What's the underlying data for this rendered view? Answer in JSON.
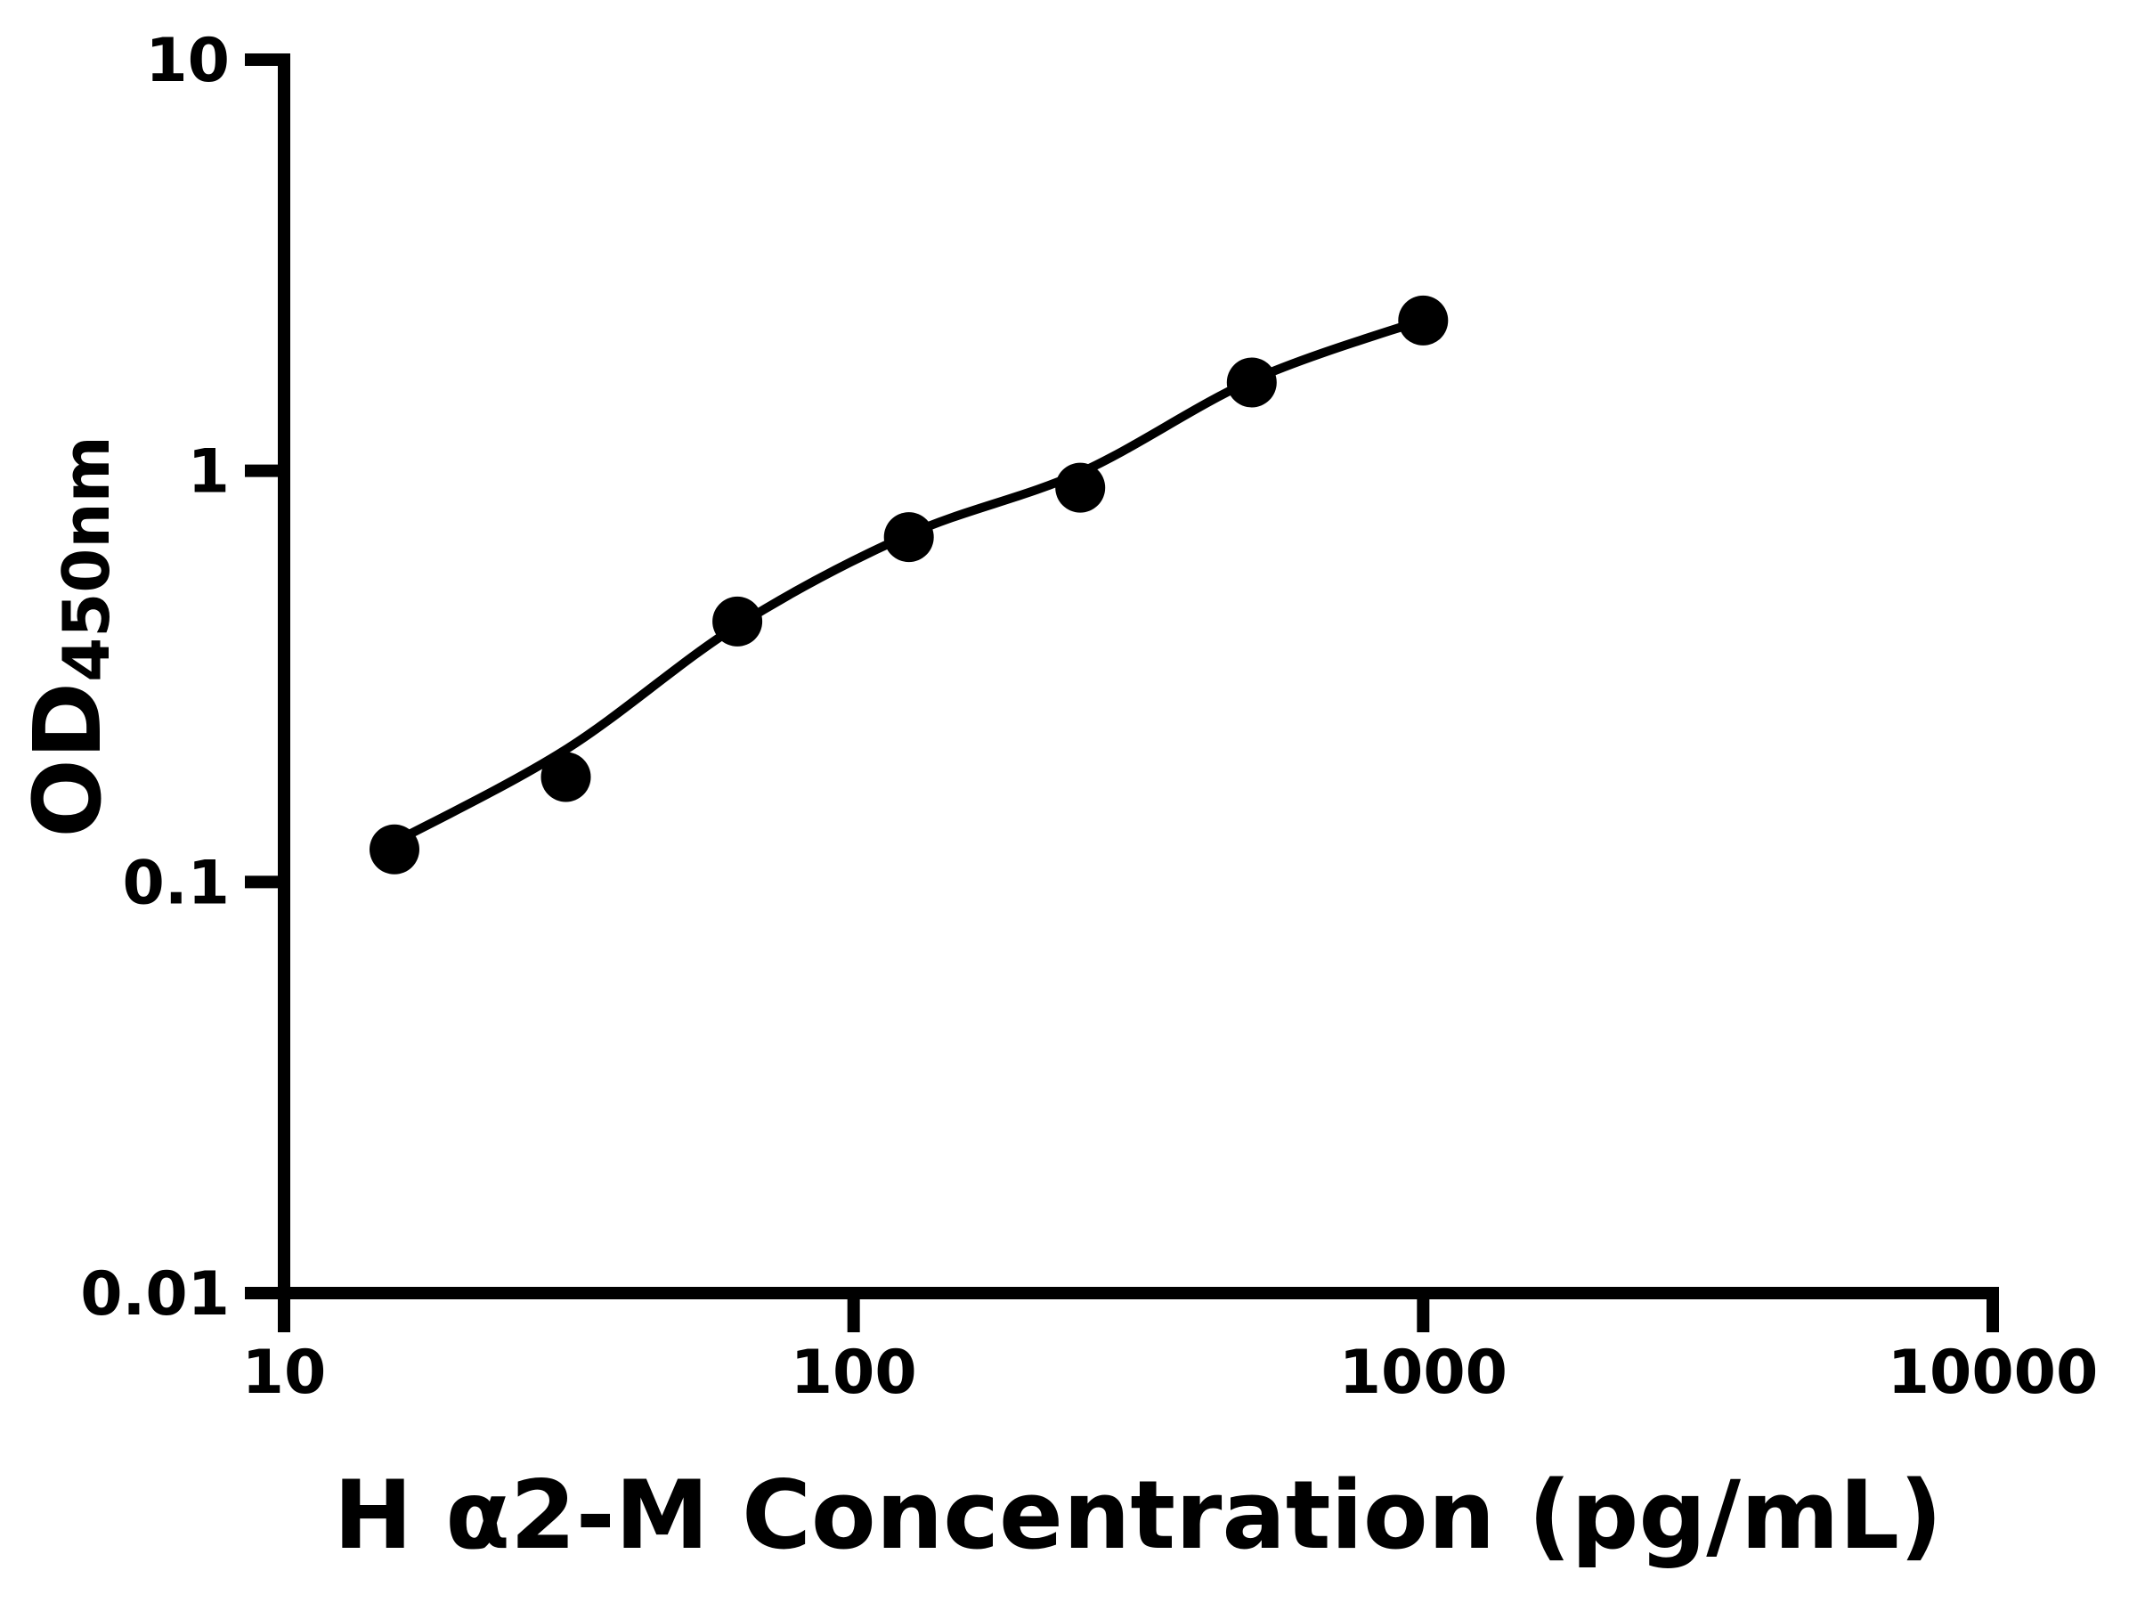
{
  "figure": {
    "background_color": "#ffffff",
    "ink_color": "#000000"
  },
  "chart_data": {
    "type": "scatter",
    "title": "",
    "xlabel": "H α2-M Concentration (pg/mL)",
    "ylabel_main": "OD",
    "ylabel_sub": "450nm",
    "x_scale": "log",
    "y_scale": "log",
    "xlim": [
      10,
      10000
    ],
    "ylim": [
      0.01,
      10
    ],
    "grid": false,
    "legend": null,
    "x_ticks": [
      {
        "value": 10,
        "label": "10"
      },
      {
        "value": 100,
        "label": "100"
      },
      {
        "value": 1000,
        "label": "1000"
      },
      {
        "value": 10000,
        "label": "10000"
      }
    ],
    "y_ticks": [
      {
        "value": 0.01,
        "label": "0.01"
      },
      {
        "value": 0.1,
        "label": "0.1"
      },
      {
        "value": 1,
        "label": "1"
      },
      {
        "value": 10,
        "label": "10"
      }
    ],
    "series": [
      {
        "name": "standard-points",
        "type": "scatter",
        "marker": "filled-circle",
        "color": "#000000",
        "points": [
          {
            "x": 15.625,
            "y": 0.12
          },
          {
            "x": 31.25,
            "y": 0.18
          },
          {
            "x": 62.5,
            "y": 0.43
          },
          {
            "x": 125,
            "y": 0.69
          },
          {
            "x": 250,
            "y": 0.91
          },
          {
            "x": 500,
            "y": 1.64
          },
          {
            "x": 1000,
            "y": 2.32
          }
        ]
      },
      {
        "name": "fit-curve",
        "type": "line",
        "color": "#000000",
        "points": [
          {
            "x": 15.625,
            "y": 0.125
          },
          {
            "x": 31.25,
            "y": 0.21
          },
          {
            "x": 62.5,
            "y": 0.42
          },
          {
            "x": 125,
            "y": 0.7
          },
          {
            "x": 250,
            "y": 0.99
          },
          {
            "x": 500,
            "y": 1.66
          },
          {
            "x": 1000,
            "y": 2.33
          }
        ]
      }
    ]
  }
}
